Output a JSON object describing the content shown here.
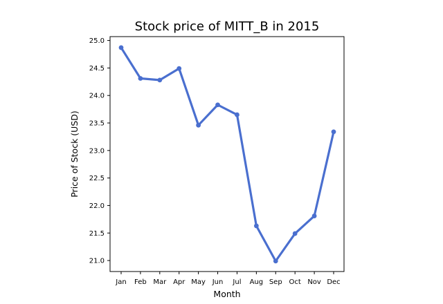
{
  "chart_data": {
    "type": "line",
    "title": "Stock price of MITT_B in 2015",
    "xlabel": "Month",
    "ylabel": "Price of Stock (USD)",
    "categories": [
      "Jan",
      "Feb",
      "Mar",
      "Apr",
      "May",
      "Jun",
      "Jul",
      "Aug",
      "Sep",
      "Oct",
      "Nov",
      "Dec"
    ],
    "series": [
      {
        "values": [
          24.87,
          24.31,
          24.28,
          24.49,
          23.46,
          23.83,
          23.65,
          21.63,
          20.99,
          21.49,
          21.81,
          23.34
        ]
      }
    ],
    "yticks": [
      "21.0",
      "21.5",
      "22.0",
      "22.5",
      "23.0",
      "23.5",
      "24.0",
      "24.5",
      "25.0"
    ],
    "ylim": [
      20.8,
      25.07
    ],
    "grid": false,
    "line_color": "#4a6fcf",
    "marker": "circle"
  }
}
